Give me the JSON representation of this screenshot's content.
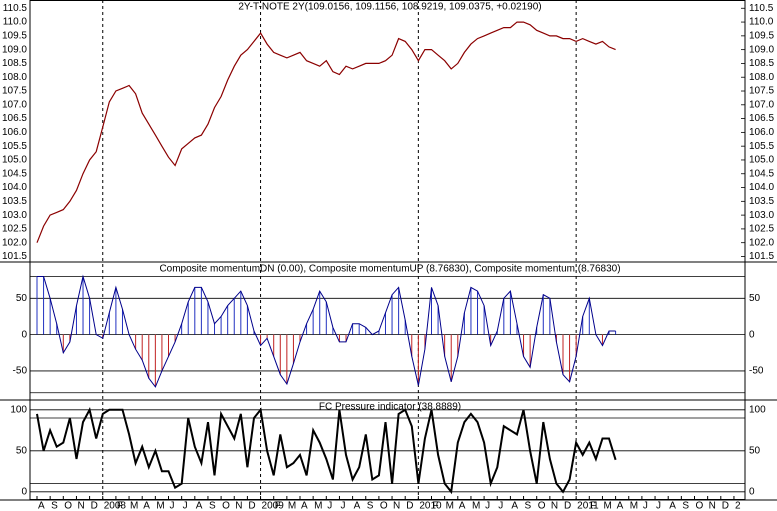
{
  "chart_data": [
    {
      "type": "line",
      "title": "2Y-T-NOTE 2Y(109.0156, 109.1156, 108.9219, 109.0375, +0.02190)",
      "color": "#8b0000",
      "ylim": [
        101.3,
        110.8
      ],
      "yticks": [
        101.5,
        {
          "value": 102,
          "label": "102.0"
        },
        102.5,
        {
          "value": 103,
          "label": "103.0"
        },
        103.5,
        {
          "value": 104,
          "label": "104.0"
        },
        104.5,
        {
          "value": 105,
          "label": "105.0"
        },
        105.5,
        {
          "value": 106,
          "label": "106.0"
        },
        106.5,
        {
          "value": 107,
          "label": "107.0"
        },
        107.5,
        {
          "value": 108,
          "label": "108.0"
        },
        108.5,
        {
          "value": 109,
          "label": "109.0"
        },
        109.5,
        {
          "value": 110,
          "label": "110.0"
        },
        110.5
      ],
      "values": [
        102.0,
        102.6,
        103.0,
        103.1,
        103.2,
        103.5,
        103.9,
        104.5,
        105.0,
        105.3,
        106.2,
        107.1,
        107.5,
        107.6,
        107.7,
        107.4,
        106.7,
        106.3,
        105.9,
        105.5,
        105.1,
        104.8,
        105.4,
        105.6,
        105.8,
        105.9,
        106.3,
        106.9,
        107.3,
        107.9,
        108.4,
        108.8,
        109.0,
        109.3,
        109.6,
        109.2,
        108.9,
        108.8,
        108.7,
        108.8,
        108.9,
        108.6,
        108.5,
        108.4,
        108.6,
        108.2,
        108.1,
        108.4,
        108.3,
        108.4,
        108.5,
        108.5,
        108.5,
        108.6,
        108.8,
        109.4,
        109.3,
        109.0,
        108.6,
        109.0,
        109.0,
        108.8,
        108.6,
        108.3,
        108.5,
        108.9,
        109.2,
        109.4,
        109.5,
        109.6,
        109.7,
        109.8,
        109.8,
        110.0,
        110.0,
        109.9,
        109.7,
        109.6,
        109.5,
        109.5,
        109.4,
        109.4,
        109.3,
        109.4,
        109.3,
        109.2,
        109.3,
        109.1,
        109.0,
        null,
        null,
        null,
        null,
        null,
        null,
        null,
        null,
        null,
        null,
        null,
        null,
        null,
        null,
        null,
        null,
        null,
        null,
        null
      ]
    },
    {
      "type": "stem",
      "title": "Composite momentumDN (0.00), Composite momentumUP (8.76830), Composite momentum (8.76830)",
      "color": "#00008b",
      "up_color": "#2030c0",
      "down_color": "#c02020",
      "ylim": [
        -90,
        100
      ],
      "yticks": [
        -50,
        0,
        50
      ],
      "levels": [
        80,
        -80
      ],
      "grid": true,
      "values": [
        80,
        80,
        50,
        15,
        -25,
        -10,
        40,
        80,
        50,
        0,
        -5,
        30,
        65,
        35,
        0,
        -20,
        -35,
        -60,
        -72,
        -50,
        -30,
        -10,
        15,
        45,
        65,
        65,
        45,
        15,
        25,
        40,
        50,
        60,
        40,
        5,
        -15,
        -5,
        -30,
        -55,
        -68,
        -40,
        -10,
        15,
        35,
        60,
        45,
        10,
        -10,
        -10,
        15,
        15,
        10,
        0,
        5,
        30,
        55,
        65,
        20,
        -30,
        -70,
        -20,
        65,
        40,
        -30,
        -65,
        -30,
        30,
        65,
        60,
        40,
        -15,
        5,
        50,
        60,
        15,
        -30,
        -45,
        10,
        55,
        50,
        -10,
        -55,
        -65,
        -30,
        25,
        50,
        0,
        -15,
        5,
        5,
        null,
        null,
        null,
        null,
        null,
        null,
        null,
        null,
        null,
        null,
        null,
        null,
        null,
        null,
        null,
        null,
        null,
        null,
        null
      ]
    },
    {
      "type": "line",
      "title": "FC Pressure indicator (38.8889)",
      "color": "#000000",
      "ylim": [
        -10,
        112
      ],
      "yticks": [
        0,
        50,
        100
      ],
      "levels": [
        90,
        10
      ],
      "grid": true,
      "values": [
        95,
        50,
        75,
        55,
        60,
        90,
        40,
        85,
        100,
        65,
        95,
        100,
        100,
        100,
        70,
        35,
        55,
        30,
        50,
        25,
        25,
        5,
        10,
        90,
        55,
        35,
        85,
        20,
        95,
        80,
        65,
        95,
        30,
        90,
        100,
        50,
        20,
        70,
        30,
        35,
        45,
        20,
        75,
        60,
        40,
        15,
        100,
        45,
        15,
        30,
        70,
        15,
        20,
        85,
        10,
        95,
        100,
        80,
        10,
        65,
        100,
        45,
        10,
        0,
        60,
        85,
        95,
        85,
        60,
        10,
        30,
        80,
        75,
        70,
        100,
        50,
        10,
        85,
        40,
        10,
        0,
        15,
        60,
        45,
        60,
        40,
        65,
        65,
        39,
        null,
        null,
        null,
        null,
        null,
        null,
        null,
        null,
        null,
        null,
        null,
        null,
        null,
        null,
        null,
        null,
        null,
        null,
        null
      ],
      "categories": [
        "A",
        null,
        "S",
        null,
        "O",
        null,
        "N",
        null,
        "D",
        null,
        "2008",
        null,
        "F",
        null,
        "M",
        null,
        "A",
        null,
        "M",
        null,
        "J",
        null,
        "J",
        null,
        "A",
        null,
        "S",
        null,
        "O",
        null,
        "N",
        null,
        "D",
        null,
        "2009",
        null,
        "F",
        null,
        "M",
        null,
        "A",
        null,
        "M",
        null,
        "J",
        null,
        "J",
        null,
        "A",
        null,
        "S",
        null,
        "O",
        null,
        "N",
        null,
        "D",
        null,
        "2010",
        null,
        "F",
        null,
        "M",
        null,
        "A",
        null,
        "M",
        null,
        "J",
        null,
        "J",
        null,
        "A",
        null,
        "S",
        null,
        "O",
        null,
        "N",
        null,
        "D",
        null,
        "2011",
        null,
        "F",
        null,
        "M",
        null,
        "A",
        null,
        "M",
        null,
        "J",
        null,
        "J",
        null,
        "A",
        null,
        "S",
        null,
        "O",
        null,
        "N",
        null,
        "D",
        null,
        "2",
        null
      ]
    }
  ]
}
